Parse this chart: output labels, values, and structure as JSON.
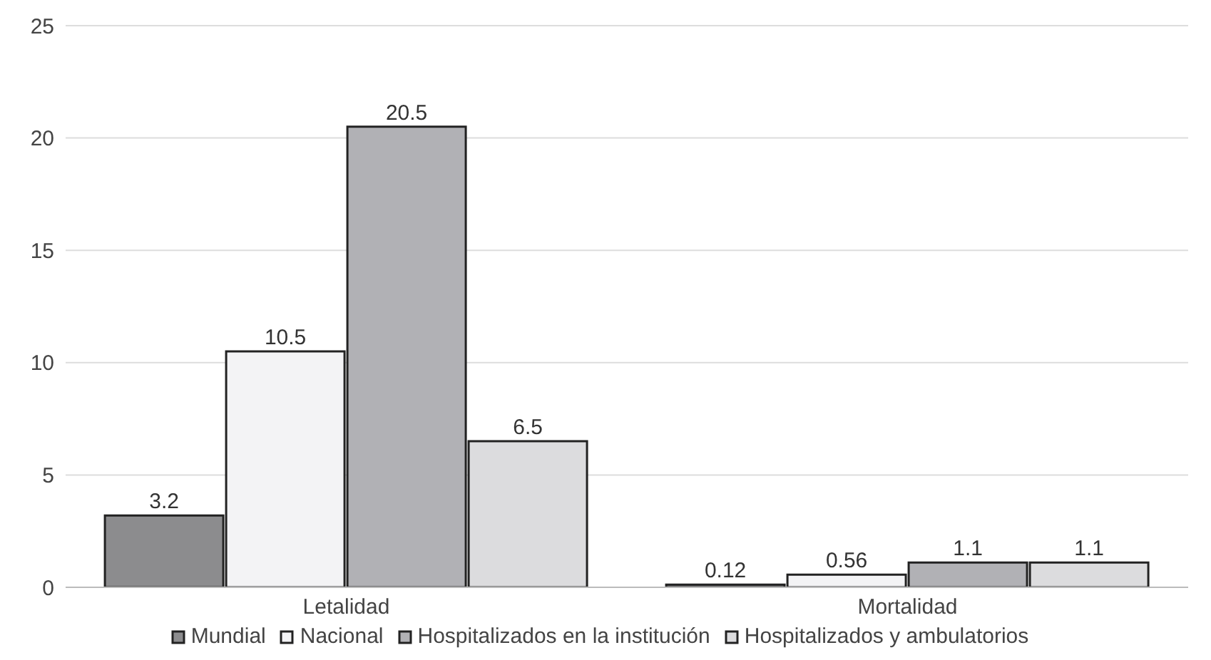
{
  "chart_data": {
    "type": "bar",
    "categories": [
      "Letalidad",
      "Mortalidad"
    ],
    "series": [
      {
        "name": "Mundial",
        "color": "#8c8c8e",
        "values": [
          3.2,
          0.12
        ]
      },
      {
        "name": "Nacional",
        "color": "#f3f3f5",
        "values": [
          10.5,
          0.56
        ]
      },
      {
        "name": "Hospitalizados en la institución",
        "color": "#b1b1b5",
        "values": [
          20.5,
          1.1
        ]
      },
      {
        "name": "Hospitalizados y ambulatorios",
        "color": "#dcdcde",
        "values": [
          6.5,
          1.1
        ]
      }
    ],
    "ylim": [
      0,
      25
    ],
    "yticks": [
      0,
      5,
      10,
      15,
      20,
      25
    ],
    "grid": "y",
    "legend": "bottom",
    "data_labels": true
  }
}
